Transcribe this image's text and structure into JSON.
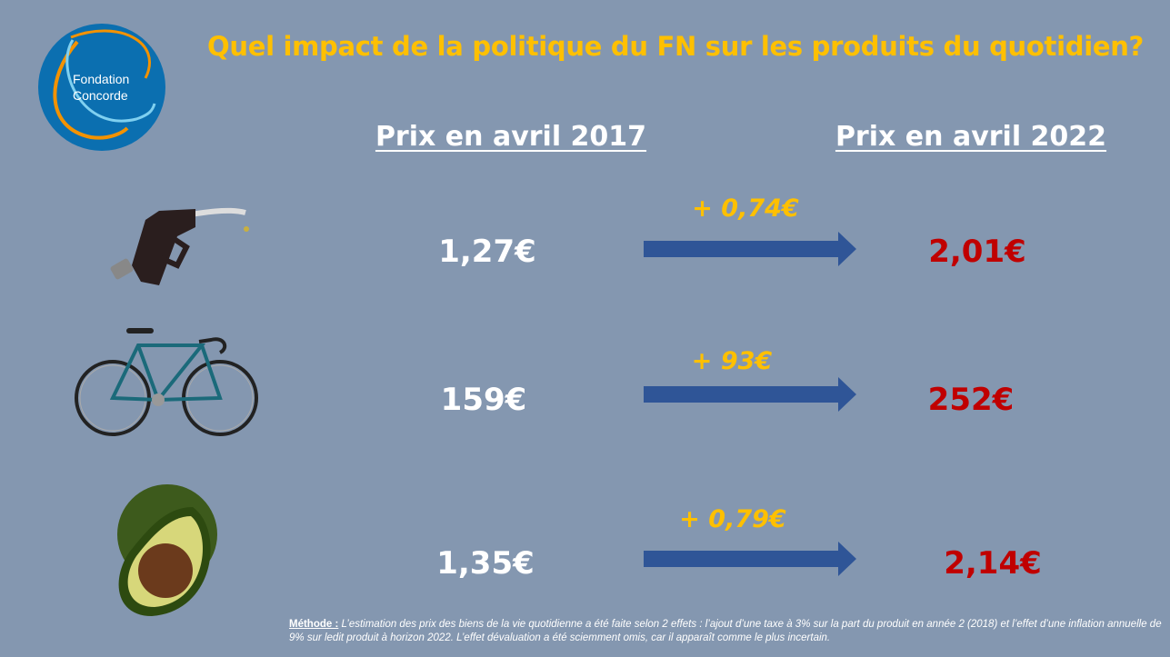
{
  "logo": {
    "line1": "Fondation",
    "line2": "Concorde"
  },
  "title": "Quel impact de la politique du FN sur les produits du quotidien?",
  "headers": {
    "before": "Prix en avril 2017",
    "after": "Prix en avril 2022"
  },
  "rows": [
    {
      "icon": "fuel-pump-icon",
      "before": "1,27€",
      "delta": "+ 0,74€",
      "after": "2,01€"
    },
    {
      "icon": "bicycle-icon",
      "before": "159€",
      "delta": "+ 93€",
      "after": "252€"
    },
    {
      "icon": "avocado-icon",
      "before": "1,35€",
      "delta": "+ 0,79€",
      "after": "2,14€"
    }
  ],
  "note": {
    "label": "Méthode :",
    "text": " L’estimation des prix des biens de la vie quotidienne a été faite selon 2 effets : l’ajout d’une taxe à 3% sur la part du produit en année 2 (2018) et l’effet d’une inflation annuelle de 9% sur ledit produit à horizon 2022. L’effet dévaluation a été sciemment omis, car il apparaît comme le plus incertain."
  },
  "colors": {
    "background": "#8497b0",
    "title": "#ffc000",
    "arrow": "#2f5597",
    "new_price": "#c00000"
  }
}
